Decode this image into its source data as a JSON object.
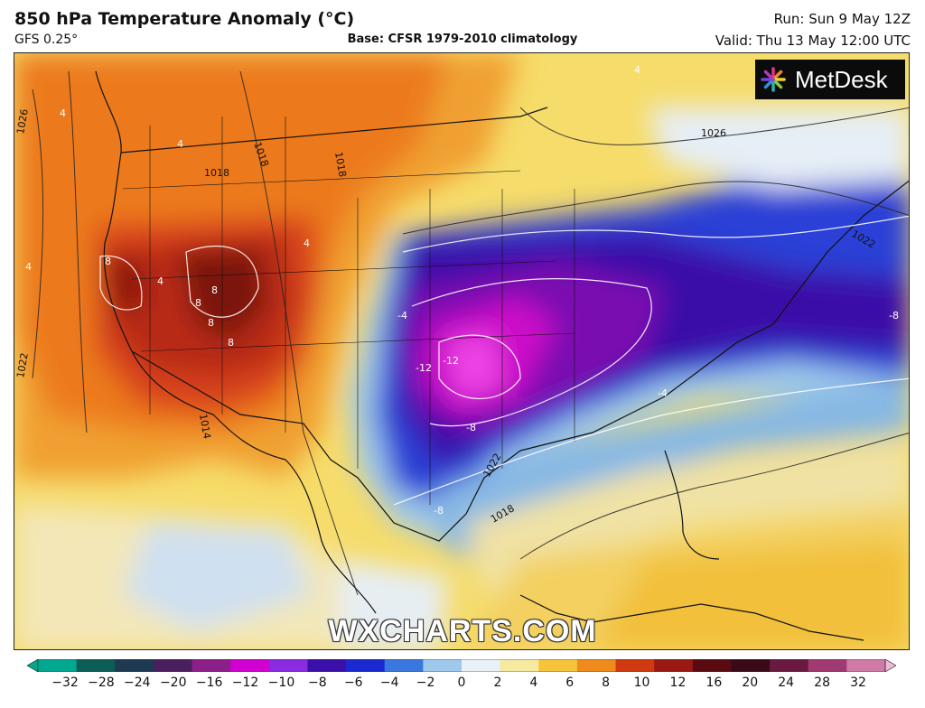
{
  "header": {
    "title": "850 hPa Temperature Anomaly (°C)",
    "model": "GFS 0.25°",
    "base": "Base: CFSR 1979-2010 climatology",
    "run": "Run: Sun 9 May 12Z",
    "valid": "Valid: Thu 13 May 12:00 UTC"
  },
  "brand": {
    "name": "MetDesk"
  },
  "watermark": "WXCHARTS.COM",
  "map": {
    "isobar_labels": [
      "1026",
      "1018",
      "1018",
      "1018",
      "1026",
      "1022",
      "1022",
      "1014",
      "1018",
      "1022"
    ],
    "anomaly_labels": [
      "8",
      "8",
      "8",
      "8",
      "8",
      "-4",
      "-12",
      "-12",
      "-8",
      "-8",
      "-4",
      "4",
      "4",
      "4",
      "4",
      "4",
      "4",
      "-8"
    ]
  },
  "legend": {
    "ticks": [
      "−32",
      "−28",
      "−24",
      "−20",
      "−16",
      "−12",
      "−10",
      "−8",
      "−6",
      "−4",
      "−2",
      "0",
      "2",
      "4",
      "6",
      "8",
      "10",
      "12",
      "16",
      "20",
      "24",
      "28",
      "32"
    ],
    "colors": [
      "#00a88f",
      "#0b5e55",
      "#1d3a52",
      "#4a1f5e",
      "#8c1f8a",
      "#d000d0",
      "#8a2be2",
      "#3b10a8",
      "#1a2ad0",
      "#3a78e0",
      "#9ec8ec",
      "#e9f1f8",
      "#f6e9a0",
      "#f5c43a",
      "#ef8a1c",
      "#cf3a10",
      "#9a1a12",
      "#5a0a10",
      "#3a0a18",
      "#6a1a40",
      "#a03a70",
      "#d07aa8",
      "#f0b8d8"
    ]
  }
}
